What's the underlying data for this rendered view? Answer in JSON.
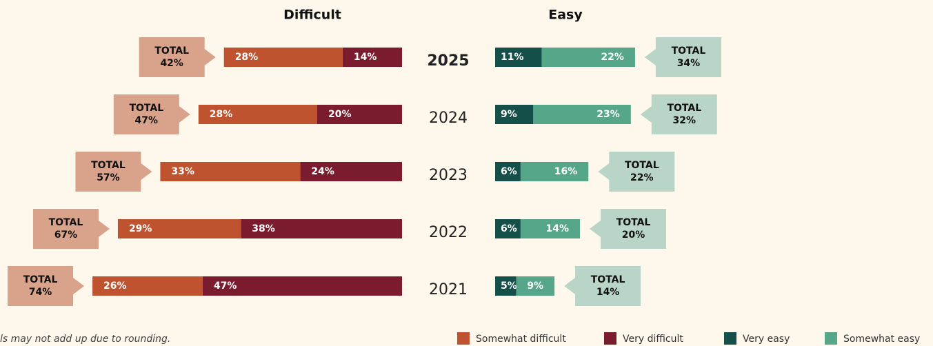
{
  "chart_data": {
    "type": "diverging_bar",
    "left_title": "Difficult",
    "right_title": "Easy",
    "categories": [
      "2025",
      "2024",
      "2023",
      "2022",
      "2021"
    ],
    "highlight": "2025",
    "series": [
      {
        "name": "Somewhat difficult",
        "color": "#c0532f",
        "side": "left",
        "values": [
          28,
          28,
          33,
          29,
          26
        ],
        "value_labels": [
          "28%",
          "28%",
          "33%",
          "29%",
          "26%"
        ]
      },
      {
        "name": "Very difficult",
        "color": "#7b1c2e",
        "side": "left",
        "values": [
          14,
          20,
          24,
          38,
          47
        ],
        "value_labels": [
          "14%",
          "20%",
          "24%",
          "38%",
          "47%"
        ]
      },
      {
        "name": "Very easy",
        "color": "#154f4a",
        "side": "right",
        "values": [
          11,
          9,
          6,
          6,
          5
        ],
        "value_labels": [
          "11%",
          "9%",
          "6%",
          "6%",
          "5%"
        ]
      },
      {
        "name": "Somewhat easy",
        "color": "#56a78a",
        "side": "right",
        "values": [
          22,
          23,
          16,
          14,
          9
        ],
        "value_labels": [
          "22%",
          "23%",
          "16%",
          "14%",
          "9%"
        ]
      }
    ],
    "total_label": "TOTAL",
    "totals": [
      {
        "side": "left",
        "color": "#d9a28a",
        "values": [
          42,
          47,
          57,
          67,
          74
        ],
        "value_labels": [
          "42%",
          "47%",
          "57%",
          "67%",
          "74%"
        ]
      },
      {
        "side": "right",
        "color": "#b9d5c8",
        "values": [
          34,
          32,
          22,
          20,
          14
        ],
        "value_labels": [
          "34%",
          "32%",
          "22%",
          "20%",
          "14%"
        ]
      }
    ],
    "footnote": "ls may not add up due to rounding."
  }
}
